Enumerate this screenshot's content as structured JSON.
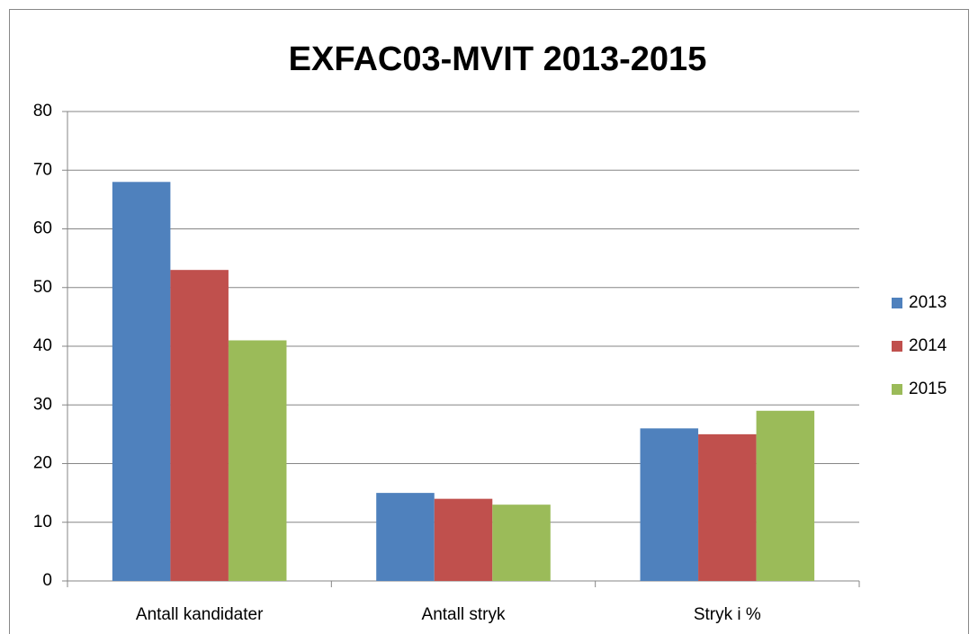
{
  "chart_data": {
    "type": "bar",
    "title": "EXFAC03-MVIT 2013-2015",
    "categories": [
      "Antall kandidater",
      "Antall stryk",
      "Stryk i %"
    ],
    "series": [
      {
        "name": "2013",
        "color": "#4f81bd",
        "values": [
          68,
          15,
          26
        ]
      },
      {
        "name": "2014",
        "color": "#c0504d",
        "values": [
          53,
          14,
          25
        ]
      },
      {
        "name": "2015",
        "color": "#9bbb59",
        "values": [
          41,
          13,
          29
        ]
      }
    ],
    "ylim": [
      0,
      80
    ],
    "yticks": [
      0,
      10,
      20,
      30,
      40,
      50,
      60,
      70,
      80
    ],
    "grid": true,
    "legend": "right"
  }
}
